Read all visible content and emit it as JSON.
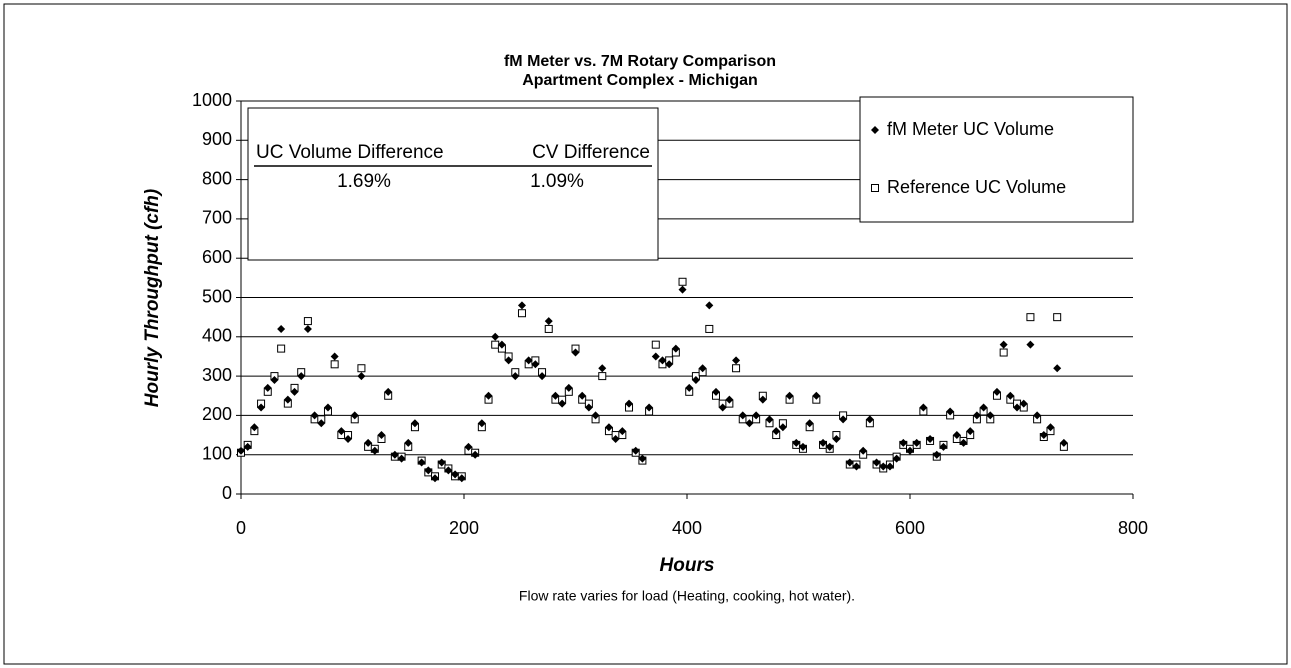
{
  "chart_data": {
    "type": "scatter",
    "title": "fM Meter vs. 7M Rotary Comparison",
    "subtitle": "Apartment Complex  - Michigan",
    "x_label": "Hours",
    "y_label": "Hourly Throughput (cfh)",
    "caption": "Flow rate varies for load (Heating, cooking, hot water).",
    "annotation": {
      "headers": [
        "UC Volume Difference",
        "CV Difference"
      ],
      "values": [
        "1.69%",
        "1.09%"
      ]
    },
    "xlim": [
      0,
      800
    ],
    "xticks": [
      0,
      200,
      400,
      600,
      800
    ],
    "ylim": [
      0,
      1000
    ],
    "yticks": [
      0,
      100,
      200,
      300,
      400,
      500,
      600,
      700,
      800,
      900,
      1000
    ],
    "grid": true,
    "legend": "upper right",
    "x": [
      0,
      6,
      12,
      18,
      24,
      30,
      36,
      42,
      48,
      54,
      60,
      66,
      72,
      78,
      84,
      90,
      96,
      102,
      108,
      114,
      120,
      126,
      132,
      138,
      144,
      150,
      156,
      162,
      168,
      174,
      180,
      186,
      192,
      198,
      204,
      210,
      216,
      222,
      228,
      234,
      240,
      246,
      252,
      258,
      264,
      270,
      276,
      282,
      288,
      294,
      300,
      306,
      312,
      318,
      324,
      330,
      336,
      342,
      348,
      354,
      360,
      366,
      372,
      378,
      384,
      390,
      396,
      402,
      408,
      414,
      420,
      426,
      432,
      438,
      444,
      450,
      456,
      462,
      468,
      474,
      480,
      486,
      492,
      498,
      504,
      510,
      516,
      522,
      528,
      534,
      540,
      546,
      552,
      558,
      564,
      570,
      576,
      582,
      588,
      594,
      600,
      606,
      612,
      618,
      624,
      630,
      636,
      642,
      648,
      654,
      660,
      666,
      672,
      678,
      684,
      690,
      696,
      702,
      708,
      714,
      720,
      726,
      732,
      738
    ],
    "series": [
      {
        "name": "fM Meter UC Volume",
        "color": "#000000",
        "marker": "diamond",
        "values": [
          110,
          120,
          170,
          220,
          270,
          290,
          420,
          240,
          260,
          300,
          420,
          200,
          180,
          220,
          350,
          160,
          140,
          200,
          300,
          130,
          110,
          150,
          260,
          100,
          90,
          130,
          180,
          80,
          60,
          40,
          80,
          60,
          50,
          40,
          120,
          100,
          180,
          250,
          400,
          380,
          340,
          300,
          480,
          340,
          330,
          300,
          440,
          250,
          230,
          270,
          360,
          250,
          220,
          200,
          320,
          170,
          140,
          160,
          230,
          110,
          90,
          220,
          350,
          340,
          330,
          370,
          520,
          270,
          290,
          320,
          480,
          260,
          220,
          240,
          340,
          200,
          180,
          200,
          240,
          190,
          160,
          170,
          250,
          130,
          120,
          180,
          250,
          130,
          120,
          140,
          190,
          80,
          70,
          110,
          190,
          80,
          70,
          70,
          90,
          130,
          110,
          130,
          220,
          140,
          100,
          120,
          210,
          150,
          130,
          160,
          200,
          220,
          200,
          260,
          380,
          250,
          220,
          230,
          380,
          200,
          150,
          170,
          320,
          130
        ]
      },
      {
        "name": "Reference UC Volume",
        "color": "#000000",
        "marker": "square",
        "values": [
          105,
          125,
          160,
          230,
          260,
          300,
          370,
          230,
          270,
          310,
          440,
          190,
          190,
          210,
          330,
          150,
          150,
          190,
          320,
          120,
          115,
          140,
          250,
          95,
          95,
          120,
          170,
          85,
          55,
          45,
          75,
          65,
          45,
          45,
          110,
          105,
          170,
          240,
          380,
          370,
          350,
          310,
          460,
          330,
          340,
          310,
          420,
          240,
          240,
          260,
          370,
          240,
          230,
          190,
          300,
          160,
          150,
          150,
          220,
          105,
          85,
          210,
          380,
          330,
          340,
          360,
          540,
          260,
          300,
          310,
          420,
          250,
          230,
          230,
          320,
          190,
          190,
          190,
          250,
          180,
          150,
          180,
          240,
          125,
          115,
          170,
          240,
          125,
          115,
          150,
          200,
          75,
          75,
          100,
          180,
          75,
          65,
          75,
          95,
          125,
          115,
          125,
          210,
          135,
          95,
          125,
          200,
          140,
          135,
          150,
          190,
          210,
          190,
          250,
          360,
          240,
          230,
          220,
          450,
          190,
          145,
          160,
          450,
          120
        ]
      }
    ]
  }
}
